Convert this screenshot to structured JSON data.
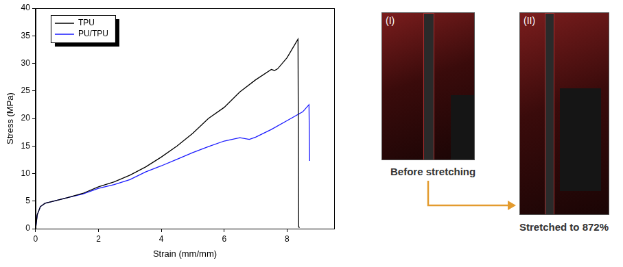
{
  "chart_data": {
    "type": "line",
    "x_label": "Strain (mm/mm)",
    "y_label": "Stress (MPa)",
    "xlim": [
      0,
      9.5
    ],
    "xticks": [
      0,
      2,
      4,
      6,
      8
    ],
    "ylim": [
      0,
      40
    ],
    "yticks": [
      0,
      5,
      10,
      15,
      20,
      25,
      30,
      35,
      40
    ],
    "grid": false,
    "legend": "upper left",
    "series": [
      {
        "name": "TPU",
        "color": "#000000",
        "x": [
          0,
          0.05,
          0.15,
          0.3,
          0.5,
          1,
          1.5,
          2,
          2.5,
          3,
          3.5,
          4,
          4.5,
          5,
          5.5,
          6,
          6.5,
          7,
          7.5,
          7.6,
          7.7,
          8,
          8.35,
          8.37,
          8.4
        ],
        "values": [
          0,
          2.5,
          4,
          4.6,
          4.9,
          5.6,
          6.4,
          7.6,
          8.5,
          9.7,
          11.2,
          13,
          15,
          17.3,
          20,
          22,
          24.8,
          27,
          28.9,
          28.7,
          29,
          31,
          34.4,
          0.3,
          0.2
        ]
      },
      {
        "name": "PU/TPU",
        "color": "#1a1aff",
        "x": [
          0,
          0.05,
          0.15,
          0.3,
          0.5,
          1,
          1.5,
          2,
          2.5,
          3,
          3.5,
          4,
          4.5,
          5,
          5.5,
          6,
          6.5,
          6.8,
          7,
          7.5,
          8,
          8.5,
          8.7,
          8.72
        ],
        "values": [
          0,
          2.5,
          4,
          4.6,
          4.9,
          5.6,
          6.3,
          7.3,
          8,
          8.9,
          10.3,
          11.4,
          12.6,
          13.8,
          14.9,
          15.9,
          16.5,
          16.2,
          16.6,
          18,
          19.6,
          21.2,
          22.5,
          12.3
        ]
      }
    ]
  },
  "photos": [
    {
      "label": "(I)",
      "caption": "Before stretching"
    },
    {
      "label": "(II)",
      "caption": "Stretched to 872%"
    }
  ]
}
